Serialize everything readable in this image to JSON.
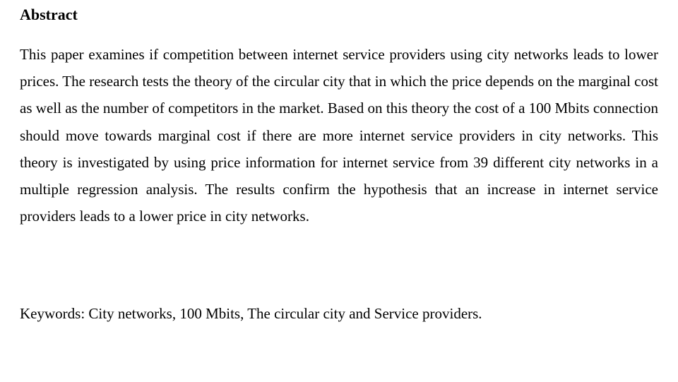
{
  "title": "Abstract",
  "body": "This paper examines if competition between internet service providers using city networks leads to lower prices. The research tests the theory of the circular city that in which the price depends on the marginal cost as well as the number of competitors in the market. Based on this theory the cost of a 100 Mbits connection should move towards marginal cost if there are more internet service providers in city networks. This theory is investigated by using price information for internet service from 39 different city networks in a multiple regression analysis. The results confirm the hypothesis that an increase in internet service providers leads to a lower price in city networks.",
  "keywords": "Keywords: City networks, 100 Mbits, The circular city and Service providers.",
  "typography": {
    "font_family": "Times New Roman",
    "title_fontsize": 22,
    "title_weight": "bold",
    "body_fontsize": 21,
    "body_line_height": 1.82,
    "body_align": "justify",
    "text_color": "#000000",
    "background_color": "#ffffff"
  }
}
